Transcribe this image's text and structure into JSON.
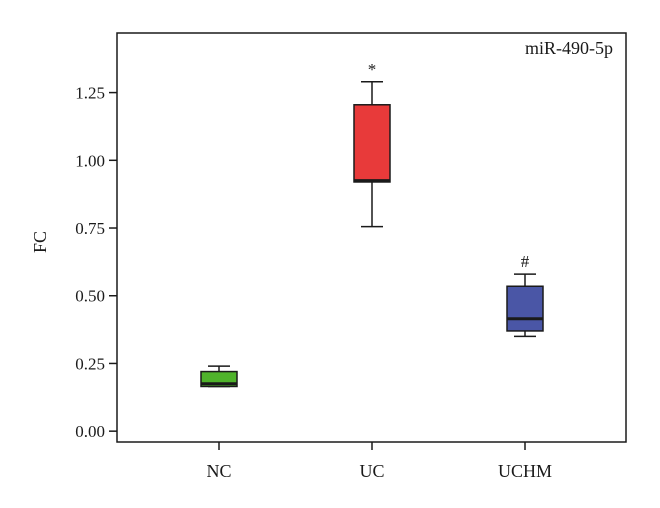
{
  "chart_data": {
    "type": "box",
    "title": "",
    "panel_label": "miR-490-5p",
    "xlabel": "",
    "ylabel": "FC",
    "ylim": [
      -0.04,
      1.47
    ],
    "yticks": [
      0.0,
      0.25,
      0.5,
      0.75,
      1.0,
      1.25
    ],
    "ytick_labels": [
      "0.00",
      "0.25",
      "0.50",
      "0.75",
      "1.00",
      "1.25"
    ],
    "categories": [
      "NC",
      "UC",
      "UCHM"
    ],
    "boxes": [
      {
        "category": "NC",
        "whisker_low": 0.165,
        "q1": 0.165,
        "median": 0.175,
        "q3": 0.22,
        "whisker_high": 0.24,
        "color": "#4fb32b",
        "annotation": ""
      },
      {
        "category": "UC",
        "whisker_low": 0.755,
        "q1": 0.92,
        "median": 0.925,
        "q3": 1.205,
        "whisker_high": 1.29,
        "color": "#e83a3a",
        "annotation": "*"
      },
      {
        "category": "UCHM",
        "whisker_low": 0.35,
        "q1": 0.37,
        "median": 0.415,
        "q3": 0.535,
        "whisker_high": 0.58,
        "color": "#4a56a6",
        "annotation": "#"
      }
    ],
    "grid": false
  }
}
